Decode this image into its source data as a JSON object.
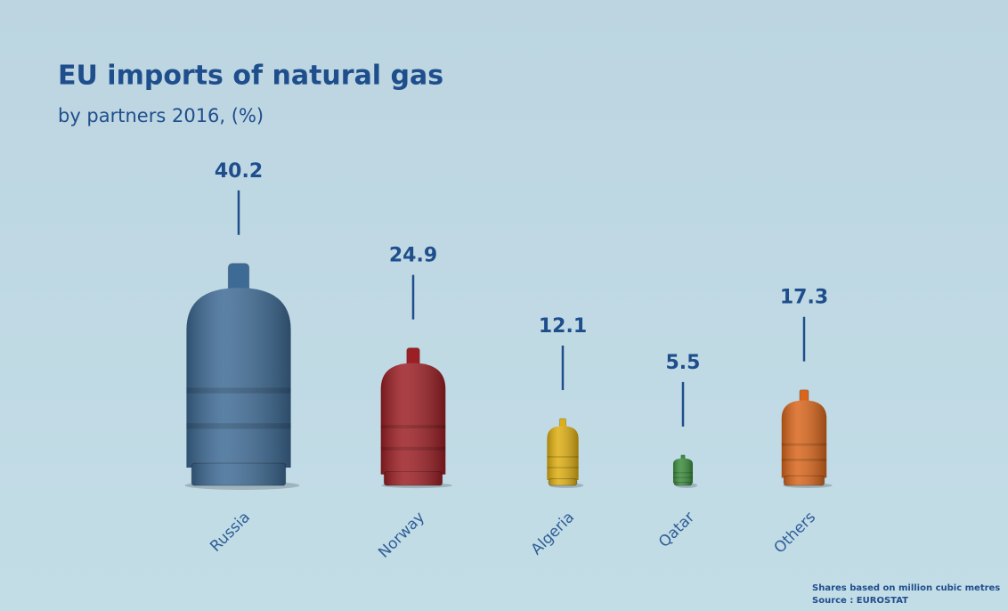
{
  "chart_data": {
    "type": "bar",
    "title": "EU imports of natural gas",
    "subtitle": "by partners 2016, (%)",
    "categories": [
      "Russia",
      "Norway",
      "Algeria",
      "Qatar",
      "Others"
    ],
    "values": [
      40.2,
      24.9,
      12.1,
      5.5,
      17.3
    ],
    "colors": [
      "#3e6b95",
      "#9c1f25",
      "#deae12",
      "#3b8c3d",
      "#d9661c"
    ],
    "notes": [
      "Shares based on million cubic metres",
      "Source : EUROSTAT"
    ]
  }
}
